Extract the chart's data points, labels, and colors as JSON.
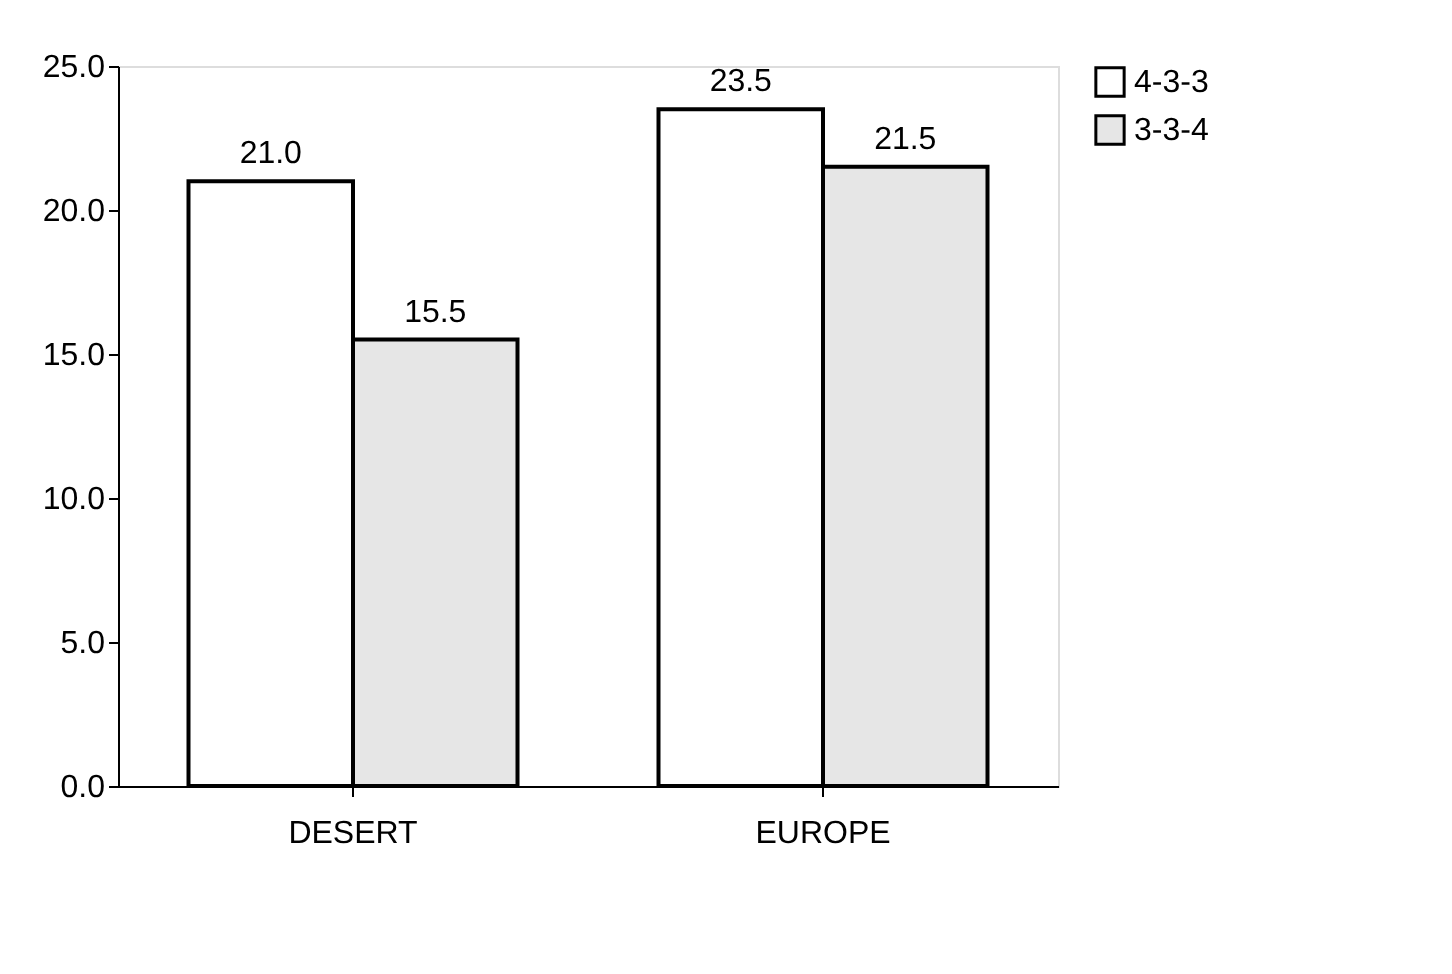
{
  "chart_data": {
    "type": "bar",
    "categories": [
      "DESERT",
      "EUROPE"
    ],
    "series": [
      {
        "name": "4-3-3",
        "color": "#ffffff",
        "values": [
          21.0,
          23.5
        ],
        "value_labels": [
          "21.0",
          "23.5"
        ]
      },
      {
        "name": "3-3-4",
        "color": "#e6e6e6",
        "values": [
          15.5,
          21.5
        ],
        "value_labels": [
          "15.5",
          "21.5"
        ]
      }
    ],
    "ylim": [
      0,
      25
    ],
    "yticks": [
      {
        "value": 0,
        "label": "0.0"
      },
      {
        "value": 5,
        "label": "5.0"
      },
      {
        "value": 10,
        "label": "10.0"
      },
      {
        "value": 15,
        "label": "15.0"
      },
      {
        "value": 20,
        "label": "20.0"
      },
      {
        "value": 25,
        "label": "25.0"
      }
    ],
    "grid": false,
    "legend": "right"
  }
}
